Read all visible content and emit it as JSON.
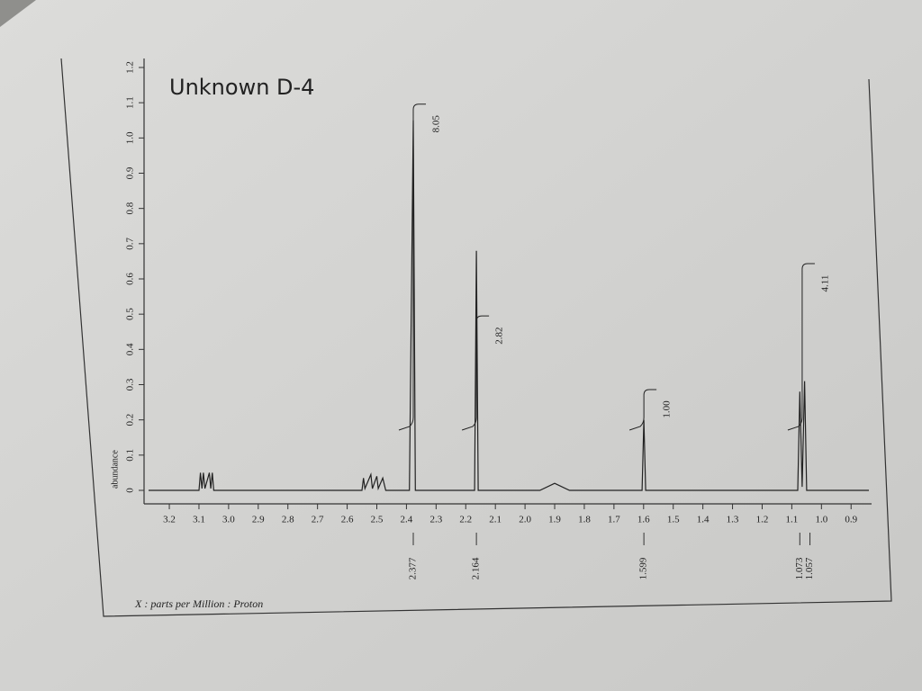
{
  "chart_data": {
    "type": "nmr",
    "title": "Unknown D-4",
    "x_label": "X : parts per Million : Proton",
    "y_label": "abundance",
    "xlim": [
      3.27,
      0.84
    ],
    "ylim": [
      0,
      1.2
    ],
    "xticks": [
      3.2,
      3.1,
      {
        "value": 3,
        "label": "3.0"
      },
      2.9,
      2.8,
      2.7,
      2.6,
      2.5,
      2.4,
      2.3,
      2.2,
      2.1,
      {
        "value": 2,
        "label": "2.0"
      },
      1.9,
      1.8,
      1.7,
      1.6,
      1.5,
      1.4,
      1.3,
      1.2,
      1.1,
      {
        "value": 1,
        "label": "1.0"
      },
      0.9
    ],
    "yticks": [
      0,
      0.1,
      0.2,
      0.3,
      0.4,
      0.5,
      0.6,
      0.7,
      0.8,
      0.9,
      {
        "value": 1,
        "label": "1.0"
      },
      1.1,
      1.2
    ],
    "color": "#222222",
    "x": [
      3.27,
      3.1,
      3.095,
      3.09,
      3.085,
      3.08,
      3.065,
      3.06,
      3.055,
      3.05,
      2.55,
      2.545,
      2.54,
      2.52,
      2.515,
      2.5,
      2.495,
      2.48,
      2.47,
      2.39,
      2.377,
      2.37,
      2.17,
      2.164,
      2.158,
      1.95,
      1.9,
      1.85,
      1.605,
      1.599,
      1.593,
      1.08,
      1.073,
      1.065,
      1.057,
      1.05,
      0.84
    ],
    "values": [
      0,
      0,
      0.05,
      0.005,
      0.05,
      0.005,
      0.05,
      0.005,
      0.05,
      0,
      0,
      0.035,
      0.005,
      0.045,
      0.005,
      0.04,
      0.005,
      0.035,
      0,
      0,
      1.05,
      0,
      0,
      0.68,
      0,
      0,
      0.02,
      0,
      0,
      0.2,
      0,
      0,
      0.28,
      0.01,
      0.31,
      0,
      0
    ],
    "peaks": [
      2.377,
      2.164,
      1.599,
      1.073,
      1.057
    ],
    "integrals": {
      "x": [
        2.377,
        2.164,
        1.599,
        1.065
      ],
      "values": [
        8.05,
        2.82,
        1.0,
        4.11
      ],
      "value_labels": [
        "8.05",
        "2.82",
        "1.00",
        "4.11"
      ]
    }
  }
}
